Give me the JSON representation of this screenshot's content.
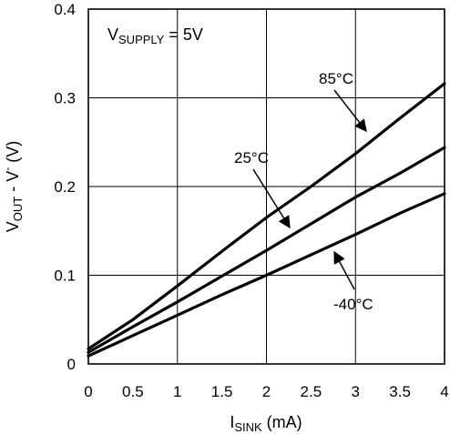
{
  "chart_data": {
    "type": "line",
    "supply_note": {
      "main": "V",
      "sub": "SUPPLY",
      "rest": " = 5V"
    },
    "xlabel": {
      "main": "I",
      "sub": "SINK",
      "rest": " (mA)"
    },
    "ylabel": {
      "main": "V",
      "sub": "OUT",
      "rest": " - V",
      "sup": "-",
      "unit": " (V)"
    },
    "xlim": [
      0,
      4
    ],
    "ylim": [
      0,
      0.4
    ],
    "x_ticks": [
      0,
      0.5,
      1,
      1.5,
      2,
      2.5,
      3,
      3.5,
      4
    ],
    "x_tick_labels": [
      "0",
      "0.5",
      "1",
      "1.5",
      "2",
      "2.5",
      "3",
      "3.5",
      "4"
    ],
    "y_ticks": [
      0,
      0.1,
      0.2,
      0.3,
      0.4
    ],
    "y_tick_labels": [
      "0",
      "0.1",
      "0.2",
      "0.3",
      "0.4"
    ],
    "grid": true,
    "series": [
      {
        "name": "85°C",
        "x": [
          0,
          0.5,
          1,
          1.5,
          2,
          2.5,
          3,
          3.5,
          4
        ],
        "y": [
          0.017,
          0.05,
          0.088,
          0.127,
          0.165,
          0.2,
          0.237,
          0.277,
          0.316
        ]
      },
      {
        "name": "25°C",
        "x": [
          0,
          0.5,
          1,
          1.5,
          2,
          2.5,
          3,
          3.5,
          4
        ],
        "y": [
          0.013,
          0.042,
          0.07,
          0.099,
          0.128,
          0.158,
          0.188,
          0.215,
          0.244
        ]
      },
      {
        "name": "-40°C",
        "x": [
          0,
          0.5,
          1,
          1.5,
          2,
          2.5,
          3,
          3.5,
          4
        ],
        "y": [
          0.009,
          0.032,
          0.055,
          0.078,
          0.1,
          0.123,
          0.146,
          0.17,
          0.192
        ]
      }
    ],
    "annotations": [
      {
        "text": "85°C",
        "series": "85°C"
      },
      {
        "text": "25°C",
        "series": "25°C"
      },
      {
        "text": "-40°C",
        "series": "-40°C"
      }
    ]
  }
}
